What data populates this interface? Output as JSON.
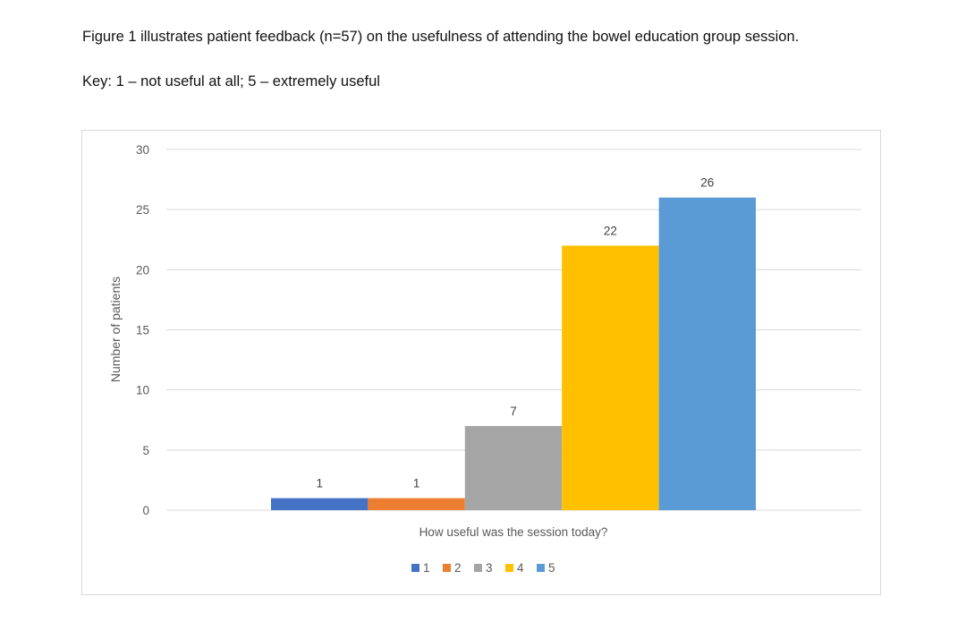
{
  "caption": "Figure 1 illustrates patient feedback (n=57) on the usefulness of attending the bowel education group session.",
  "key": "Key: 1 – not useful at all; 5 – extremely useful",
  "chart_data": {
    "type": "bar",
    "title": "",
    "xlabel": "How useful was the session today?",
    "ylabel": "Number of patients",
    "ylim": [
      0,
      30
    ],
    "yticks": [
      0,
      5,
      10,
      15,
      20,
      25,
      30
    ],
    "grid": true,
    "legend_position": "bottom",
    "series": [
      {
        "name": "1",
        "values": [
          1
        ],
        "color": "#4472c4"
      },
      {
        "name": "2",
        "values": [
          1
        ],
        "color": "#ed7d31"
      },
      {
        "name": "3",
        "values": [
          7
        ],
        "color": "#a5a5a5"
      },
      {
        "name": "4",
        "values": [
          22
        ],
        "color": "#ffc000"
      },
      {
        "name": "5",
        "values": [
          26
        ],
        "color": "#5b9bd5"
      }
    ],
    "data_labels": true
  }
}
